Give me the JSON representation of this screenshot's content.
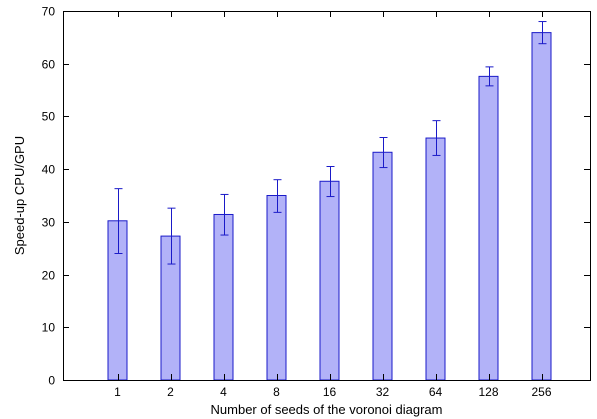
{
  "chart_data": {
    "type": "bar",
    "xlabel": "Number of seeds of the voronoi diagram",
    "ylabel": "Speed-up CPU/GPU",
    "ylim": [
      0,
      70
    ],
    "yticks": [
      "0",
      "10",
      "20",
      "30",
      "40",
      "50",
      "60",
      "70"
    ],
    "categories": [
      "1",
      "2",
      "4",
      "8",
      "16",
      "32",
      "64",
      "128",
      "256"
    ],
    "values": [
      30.2,
      27.3,
      31.4,
      35.0,
      37.7,
      43.2,
      45.9,
      57.6,
      65.9
    ],
    "error_low": [
      24.0,
      22.0,
      27.5,
      31.8,
      34.8,
      40.3,
      42.6,
      55.8,
      63.8
    ],
    "error_high": [
      36.3,
      32.6,
      35.2,
      38.0,
      40.5,
      46.0,
      49.2,
      59.4,
      68.0
    ],
    "grid": false,
    "legend": "none",
    "colors": {
      "bar_fill": "#b2b2f8",
      "bar_stroke": "#1a1ac8",
      "error_bar": "#1a1ac8",
      "axis": "#000000"
    }
  }
}
